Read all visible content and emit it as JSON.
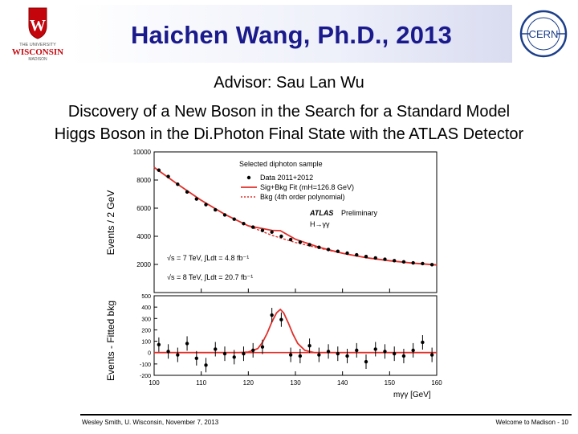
{
  "slide": {
    "title": "Haichen Wang, Ph.D., 2013",
    "advisor": "Advisor: Sau Lan Wu",
    "thesis_line1": "Discovery of a New Boson in the Search for a Standard Model",
    "thesis_line2": "Higgs Boson in the Di.Photon Final State with the ATLAS Detector"
  },
  "logos": {
    "uw_line1": "THE UNIVERSITY",
    "uw_line2": "WISCONSIN",
    "uw_line3": "MADISON",
    "cern": "CERN"
  },
  "footer": {
    "left": "Wesley Smith, U. Wisconsin, November 7, 2013",
    "right": "Welcome to Madison - 10"
  },
  "colors": {
    "title": "#1a1a8c",
    "fit_curve": "#e0302a",
    "points": "#000000",
    "uw_red": "#c5050c",
    "cern_blue": "#1c3f8a"
  },
  "chart_data": [
    {
      "type": "scatter",
      "title": "Selected diphoton sample",
      "ylabel": "Events / 2 GeV",
      "xlim": [
        100,
        160
      ],
      "ylim": [
        0,
        10000
      ],
      "yticks": [
        2000,
        4000,
        6000,
        8000,
        10000
      ],
      "legend": {
        "placement": "top-right",
        "data": "Data 2011+2012",
        "sig": "Sig+Bkg Fit (mH=126.8 GeV)",
        "bkg": "Bkg (4th order polynomial)"
      },
      "annotations": {
        "atlas": "ATLAS",
        "prelim": "Preliminary",
        "channel": "H→γγ",
        "lumi7": "√s = 7 TeV, ∫Ldt = 4.8 fb⁻¹",
        "lumi8": "√s = 8 TeV, ∫Ldt = 20.7 fb⁻¹"
      },
      "series": [
        {
          "name": "Data 2011+2012",
          "x": [
            101,
            103,
            105,
            107,
            109,
            111,
            113,
            115,
            117,
            119,
            121,
            123,
            125,
            127,
            129,
            131,
            133,
            135,
            137,
            139,
            141,
            143,
            145,
            147,
            149,
            151,
            153,
            155,
            157,
            159
          ],
          "y": [
            8700,
            8250,
            7700,
            7150,
            6650,
            6250,
            5880,
            5520,
            5220,
            4900,
            4650,
            4420,
            4300,
            4000,
            3770,
            3580,
            3400,
            3220,
            3060,
            2930,
            2800,
            2680,
            2560,
            2460,
            2370,
            2270,
            2180,
            2110,
            2060,
            1980
          ]
        },
        {
          "name": "Sig+Bkg Fit (mH=126.8 GeV)",
          "x": [
            100,
            105,
            110,
            115,
            120,
            125,
            126.8,
            130,
            135,
            140,
            145,
            150,
            155,
            160
          ],
          "y": [
            8900,
            7700,
            6560,
            5560,
            4740,
            4420,
            4400,
            3790,
            3220,
            2790,
            2480,
            2260,
            2090,
            1960
          ]
        },
        {
          "name": "Bkg (4th order polynomial)",
          "x": [
            100,
            105,
            110,
            115,
            120,
            125,
            130,
            135,
            140,
            145,
            150,
            155,
            160
          ],
          "y": [
            8900,
            7700,
            6560,
            5560,
            4740,
            4070,
            3560,
            3160,
            2790,
            2480,
            2260,
            2090,
            1960
          ]
        }
      ]
    },
    {
      "type": "scatter",
      "ylabel": "Events - Fitted bkg",
      "xlabel": "mγγ [GeV]",
      "xlim": [
        100,
        160
      ],
      "ylim": [
        -200,
        500
      ],
      "xticks": [
        100,
        110,
        120,
        130,
        140,
        150,
        160
      ],
      "yticks": [
        -200,
        -100,
        0,
        100,
        200,
        300,
        400,
        500
      ],
      "series": [
        {
          "name": "Data 2011+2012",
          "x": [
            101,
            103,
            105,
            107,
            109,
            111,
            113,
            115,
            117,
            119,
            121,
            123,
            125,
            127,
            129,
            131,
            133,
            135,
            137,
            139,
            141,
            143,
            145,
            147,
            149,
            151,
            153,
            155,
            157,
            159
          ],
          "y": [
            70,
            10,
            -20,
            80,
            -50,
            -110,
            30,
            -10,
            -40,
            -10,
            20,
            50,
            330,
            290,
            -20,
            -30,
            60,
            -20,
            10,
            -10,
            -30,
            20,
            -80,
            30,
            10,
            -10,
            -30,
            20,
            90,
            -20
          ]
        },
        {
          "name": "Sig+Bkg Fit (mH=126.8 GeV)",
          "x": [
            100,
            118,
            120,
            122,
            123,
            124,
            125,
            126,
            126.8,
            127.5,
            128.5,
            129.5,
            130.5,
            132,
            134,
            160
          ],
          "y": [
            0,
            0,
            5,
            35,
            90,
            170,
            270,
            350,
            380,
            350,
            260,
            160,
            80,
            20,
            0,
            0
          ]
        }
      ]
    }
  ]
}
